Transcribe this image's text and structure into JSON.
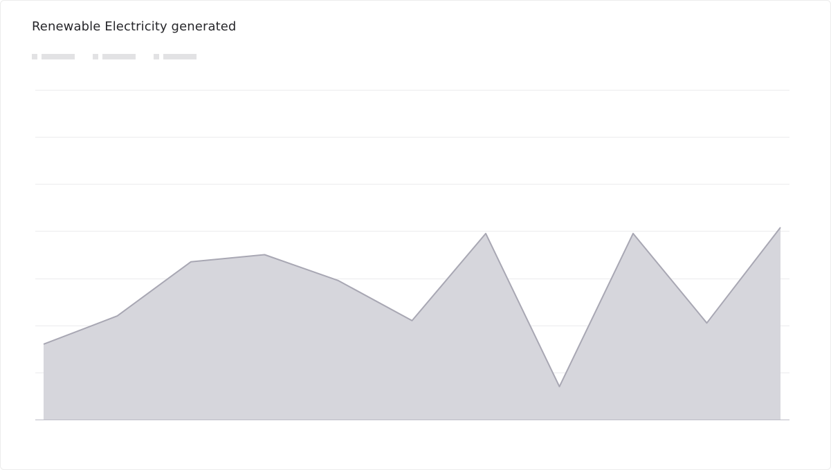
{
  "card": {
    "title": "Renewable Electricity generated"
  },
  "legend": {
    "entries": [
      "",
      "",
      ""
    ]
  },
  "chart_data": {
    "type": "area",
    "title": "Renewable Electricity generated",
    "xlabel": "",
    "ylabel": "",
    "x": [
      1,
      2,
      3,
      4,
      5,
      6,
      7,
      8,
      9,
      10,
      11
    ],
    "series": [
      {
        "values": [
          16,
          22,
          33.5,
          35,
          29.5,
          21,
          39.5,
          7,
          39.5,
          20.5,
          40.8
        ],
        "color": "#a8a7b3",
        "fill": "#d6d6dc"
      }
    ],
    "ylim": [
      0,
      70
    ],
    "grid": true,
    "axis_labels_visible": false,
    "legend_placement": "top-left"
  }
}
